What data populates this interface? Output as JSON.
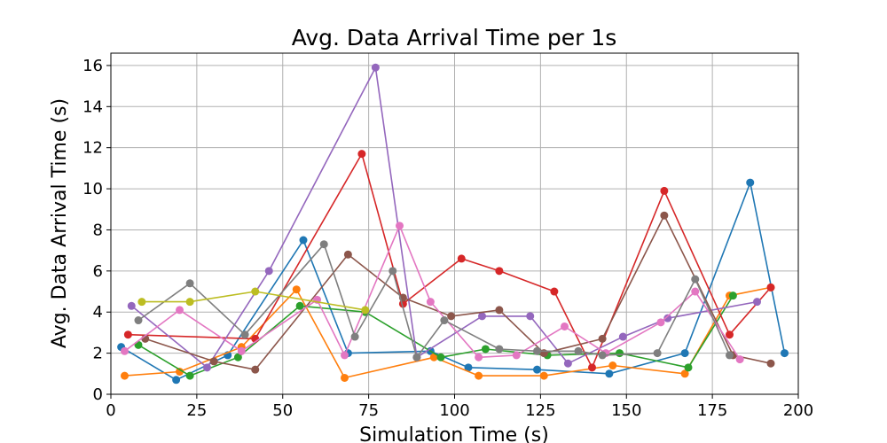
{
  "chart_data": {
    "type": "line",
    "title": "Avg. Data Arrival Time per 1s",
    "xlabel": "Simulation Time (s)",
    "ylabel": "Avg. Data Arrival Time (s)",
    "xlim": [
      0,
      200
    ],
    "ylim": [
      0,
      16.6
    ],
    "xticks": [
      0,
      25,
      50,
      75,
      100,
      125,
      150,
      175,
      200
    ],
    "yticks": [
      0,
      2,
      4,
      6,
      8,
      10,
      12,
      14,
      16
    ],
    "grid": true,
    "series": [
      {
        "color": "#1f77b4",
        "points": [
          [
            3,
            2.3
          ],
          [
            19,
            0.7
          ],
          [
            34,
            1.9
          ],
          [
            56,
            7.5
          ],
          [
            69,
            2.0
          ],
          [
            93,
            2.1
          ],
          [
            104,
            1.3
          ],
          [
            124,
            1.2
          ],
          [
            145,
            1.0
          ],
          [
            167,
            2.0
          ],
          [
            186,
            10.3
          ],
          [
            196,
            2.0
          ]
        ]
      },
      {
        "color": "#ff7f0e",
        "points": [
          [
            4,
            0.9
          ],
          [
            20,
            1.1
          ],
          [
            38,
            2.3
          ],
          [
            54,
            5.1
          ],
          [
            68,
            0.8
          ],
          [
            94,
            1.8
          ],
          [
            107,
            0.9
          ],
          [
            126,
            0.9
          ],
          [
            146,
            1.4
          ],
          [
            167,
            1.0
          ],
          [
            180,
            4.8
          ],
          [
            192,
            5.2
          ]
        ]
      },
      {
        "color": "#2ca02c",
        "points": [
          [
            8,
            2.4
          ],
          [
            23,
            0.9
          ],
          [
            37,
            1.8
          ],
          [
            55,
            4.3
          ],
          [
            74,
            4.0
          ],
          [
            96,
            1.8
          ],
          [
            109,
            2.2
          ],
          [
            127,
            1.9
          ],
          [
            148,
            2.0
          ],
          [
            168,
            1.3
          ],
          [
            181,
            4.8
          ]
        ]
      },
      {
        "color": "#d62728",
        "points": [
          [
            5,
            2.9
          ],
          [
            42,
            2.7
          ],
          [
            73,
            11.7
          ],
          [
            85,
            4.4
          ],
          [
            102,
            6.6
          ],
          [
            113,
            6.0
          ],
          [
            129,
            5.0
          ],
          [
            140,
            1.3
          ],
          [
            161,
            9.9
          ],
          [
            180,
            2.9
          ],
          [
            192,
            5.2
          ]
        ]
      },
      {
        "color": "#9467bd",
        "points": [
          [
            6,
            4.3
          ],
          [
            28,
            1.3
          ],
          [
            46,
            6.0
          ],
          [
            77,
            15.9
          ],
          [
            89,
            1.8
          ],
          [
            108,
            3.8
          ],
          [
            122,
            3.8
          ],
          [
            133,
            1.5
          ],
          [
            149,
            2.8
          ],
          [
            162,
            3.7
          ],
          [
            188,
            4.5
          ]
        ]
      },
      {
        "color": "#8c564b",
        "points": [
          [
            10,
            2.7
          ],
          [
            30,
            1.6
          ],
          [
            42,
            1.2
          ],
          [
            69,
            6.8
          ],
          [
            85,
            4.7
          ],
          [
            99,
            3.8
          ],
          [
            113,
            4.1
          ],
          [
            126,
            2.0
          ],
          [
            143,
            2.7
          ],
          [
            161,
            8.7
          ],
          [
            181,
            1.9
          ],
          [
            192,
            1.5
          ]
        ]
      },
      {
        "color": "#e377c2",
        "points": [
          [
            4,
            2.1
          ],
          [
            20,
            4.1
          ],
          [
            38,
            2.1
          ],
          [
            60,
            4.6
          ],
          [
            68,
            1.9
          ],
          [
            84,
            8.2
          ],
          [
            93,
            4.5
          ],
          [
            107,
            1.8
          ],
          [
            118,
            1.9
          ],
          [
            132,
            3.3
          ],
          [
            144,
            2.0
          ],
          [
            160,
            3.5
          ],
          [
            170,
            5.0
          ],
          [
            183,
            1.7
          ]
        ]
      },
      {
        "color": "#7f7f7f",
        "points": [
          [
            8,
            3.6
          ],
          [
            23,
            5.4
          ],
          [
            39,
            2.9
          ],
          [
            62,
            7.3
          ],
          [
            71,
            2.8
          ],
          [
            82,
            6.0
          ],
          [
            89,
            1.8
          ],
          [
            97,
            3.6
          ],
          [
            113,
            2.2
          ],
          [
            124,
            2.1
          ],
          [
            136,
            2.1
          ],
          [
            143,
            1.9
          ],
          [
            159,
            2.0
          ],
          [
            170,
            5.6
          ],
          [
            180,
            1.9
          ]
        ]
      },
      {
        "color": "#bcbd22",
        "points": [
          [
            9,
            4.5
          ],
          [
            23,
            4.5
          ],
          [
            42,
            5.0
          ],
          [
            74,
            4.1
          ]
        ]
      }
    ]
  }
}
